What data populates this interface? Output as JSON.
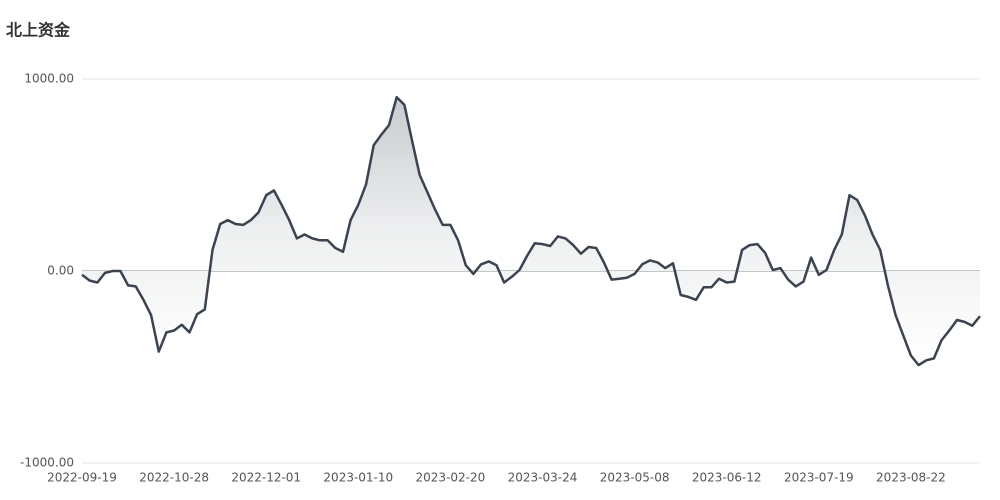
{
  "chart_data": {
    "type": "area",
    "title": "北上资金",
    "categories": [
      "2022-09-19",
      null,
      null,
      null,
      null,
      null,
      null,
      null,
      null,
      null,
      null,
      null,
      "2022-10-28",
      null,
      null,
      null,
      null,
      null,
      null,
      null,
      null,
      null,
      null,
      null,
      "2022-12-01",
      null,
      null,
      null,
      null,
      null,
      null,
      null,
      null,
      null,
      null,
      null,
      "2023-01-10",
      null,
      null,
      null,
      null,
      null,
      null,
      null,
      null,
      null,
      null,
      null,
      "2023-02-20",
      null,
      null,
      null,
      null,
      null,
      null,
      null,
      null,
      null,
      null,
      null,
      "2023-03-24",
      null,
      null,
      null,
      null,
      null,
      null,
      null,
      null,
      null,
      null,
      null,
      "2023-05-08",
      null,
      null,
      null,
      null,
      null,
      null,
      null,
      null,
      null,
      null,
      null,
      "2023-06-12",
      null,
      null,
      null,
      null,
      null,
      null,
      null,
      null,
      null,
      null,
      null,
      "2023-07-19",
      null,
      null,
      null,
      null,
      null,
      null,
      null,
      null,
      null,
      null,
      null,
      "2023-08-22",
      null,
      null,
      null,
      null,
      null,
      null,
      null,
      null,
      null
    ],
    "series": [
      {
        "color": "#3b4350",
        "values": [
          -20,
          -50,
          -60,
          -10,
          0,
          0,
          -75,
          -80,
          -150,
          -230,
          -420,
          -320,
          -310,
          -280,
          -320,
          -225,
          -200,
          110,
          245,
          265,
          245,
          240,
          265,
          305,
          395,
          420,
          345,
          265,
          170,
          190,
          170,
          160,
          160,
          120,
          100,
          265,
          345,
          450,
          655,
          710,
          760,
          905,
          865,
          680,
          500,
          410,
          320,
          240,
          240,
          160,
          30,
          -15,
          35,
          50,
          30,
          -60,
          -30,
          5,
          80,
          145,
          140,
          130,
          180,
          170,
          135,
          90,
          125,
          120,
          45,
          -45,
          -40,
          -35,
          -15,
          35,
          55,
          45,
          15,
          40,
          -125,
          -135,
          -150,
          -85,
          -85,
          -40,
          -60,
          -55,
          110,
          135,
          140,
          95,
          5,
          15,
          -45,
          -80,
          -55,
          70,
          -20,
          5,
          110,
          190,
          395,
          370,
          290,
          190,
          110,
          -75,
          -230,
          -335,
          -440,
          -490,
          -465,
          -455,
          -360,
          -310,
          -255,
          -265,
          -285,
          -235
        ]
      }
    ],
    "ylim": [
      -1000,
      1000
    ],
    "yticks": [
      {
        "value": -1000,
        "label": "-1000.00"
      },
      {
        "value": 0,
        "label": "0.00"
      },
      {
        "value": 1000,
        "label": "1000.00"
      }
    ],
    "grid": true
  }
}
